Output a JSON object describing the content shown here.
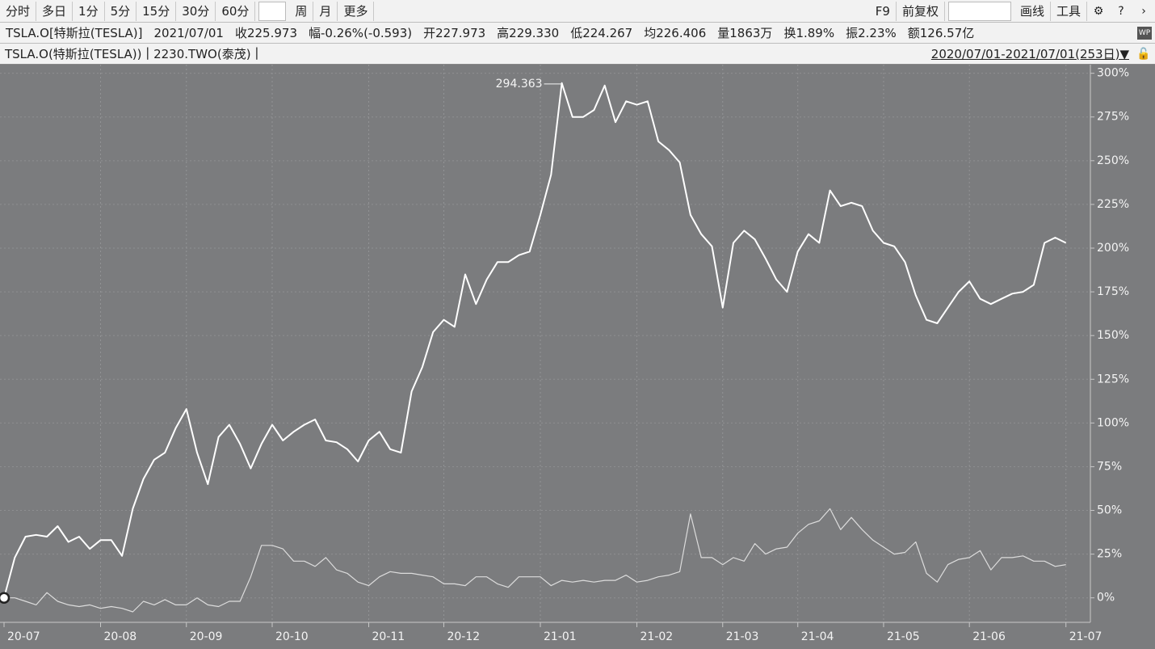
{
  "toolbar": {
    "left": [
      "分时",
      "多日",
      "1分",
      "5分",
      "15分",
      "30分",
      "60分",
      "周",
      "月",
      "更多"
    ],
    "right": [
      "F9",
      "前复权",
      "画线",
      "工具"
    ]
  },
  "quote": {
    "symbol": "TSLA.O[特斯拉(TESLA)]",
    "date": "2021/07/01",
    "fields": [
      "收225.973",
      "幅-0.26%(-0.593)",
      "开227.973",
      "高229.330",
      "低224.267",
      "均226.406",
      "量1863万",
      "换1.89%",
      "振2.23%",
      "额126.57亿"
    ]
  },
  "range": "2020/07/01-2021/07/01(253日)▼",
  "chart_data": {
    "type": "line",
    "categories": [
      "20-07",
      null,
      null,
      null,
      null,
      null,
      null,
      null,
      null,
      "20-08",
      null,
      null,
      null,
      null,
      null,
      null,
      null,
      "20-09",
      null,
      null,
      null,
      null,
      null,
      null,
      null,
      "20-10",
      null,
      null,
      null,
      null,
      null,
      null,
      null,
      null,
      "20-11",
      null,
      null,
      null,
      null,
      null,
      null,
      "20-12",
      null,
      null,
      null,
      null,
      null,
      null,
      null,
      null,
      "21-01",
      null,
      null,
      null,
      null,
      null,
      null,
      null,
      null,
      "21-02",
      null,
      null,
      null,
      null,
      null,
      null,
      null,
      "21-03",
      null,
      null,
      null,
      null,
      null,
      null,
      "21-04",
      null,
      null,
      null,
      null,
      null,
      null,
      null,
      "21-05",
      null,
      null,
      null,
      null,
      null,
      null,
      null,
      "21-06",
      null,
      null,
      null,
      null,
      null,
      null,
      null,
      null,
      "21-07"
    ],
    "series": [
      {
        "name": "TSLA.O(特斯拉(TESLA))",
        "color": "#ffffff",
        "values": [
          0,
          23,
          35,
          36,
          35,
          41,
          32,
          35,
          28,
          33,
          33,
          24,
          51,
          68,
          79,
          83,
          97,
          108,
          83,
          65,
          92,
          99,
          88,
          74,
          88,
          99,
          90,
          95,
          99,
          102,
          90,
          89,
          85,
          78,
          90,
          95,
          85,
          83,
          118,
          132,
          152,
          159,
          155,
          185,
          168,
          182,
          192,
          192,
          196,
          198,
          219,
          242,
          294.363,
          275,
          275,
          279,
          293,
          272,
          284,
          282,
          284,
          261,
          256,
          249,
          219,
          208,
          201,
          166,
          203,
          210,
          205,
          194,
          182,
          175,
          198,
          208,
          203,
          233,
          224,
          226,
          224,
          210,
          203,
          201,
          192,
          173,
          159,
          157,
          166,
          175,
          181,
          171,
          168,
          171,
          174,
          175,
          179,
          203,
          206,
          203
        ]
      },
      {
        "name": "2230.TWO(泰茂)",
        "color": "#dcdcdc",
        "values": [
          0,
          0,
          -2,
          -4,
          3,
          -2,
          -4,
          -5,
          -4,
          -6,
          -5,
          -6,
          -8,
          -2,
          -4,
          -1,
          -4,
          -4,
          0,
          -4,
          -5,
          -2,
          -2,
          12,
          30,
          30,
          28,
          21,
          21,
          18,
          23,
          16,
          14,
          9,
          7,
          12,
          15,
          14,
          14,
          13,
          12,
          8,
          8,
          7,
          12,
          12,
          8,
          6,
          12,
          12,
          12,
          7,
          10,
          9,
          10,
          9,
          10,
          10,
          13,
          9,
          10,
          12,
          13,
          15,
          48,
          23,
          23,
          19,
          23,
          21,
          31,
          25,
          28,
          29,
          37,
          42,
          44,
          51,
          39,
          46,
          39,
          33,
          29,
          25,
          26,
          32,
          14,
          9,
          19,
          22,
          23,
          27,
          16,
          23,
          23,
          24,
          21,
          21,
          18,
          19
        ]
      }
    ],
    "ylim": [
      -14,
      304
    ],
    "yticks": [
      {
        "value": 0,
        "label": "0%"
      },
      {
        "value": 25,
        "label": "25%"
      },
      {
        "value": 50,
        "label": "50%"
      },
      {
        "value": 75,
        "label": "75%"
      },
      {
        "value": 100,
        "label": "100%"
      },
      {
        "value": 125,
        "label": "125%"
      },
      {
        "value": 150,
        "label": "150%"
      },
      {
        "value": 175,
        "label": "175%"
      },
      {
        "value": 200,
        "label": "200%"
      },
      {
        "value": 225,
        "label": "225%"
      },
      {
        "value": 250,
        "label": "250%"
      },
      {
        "value": 275,
        "label": "275%"
      },
      {
        "value": 300,
        "label": "300%"
      }
    ],
    "grid": true
  }
}
